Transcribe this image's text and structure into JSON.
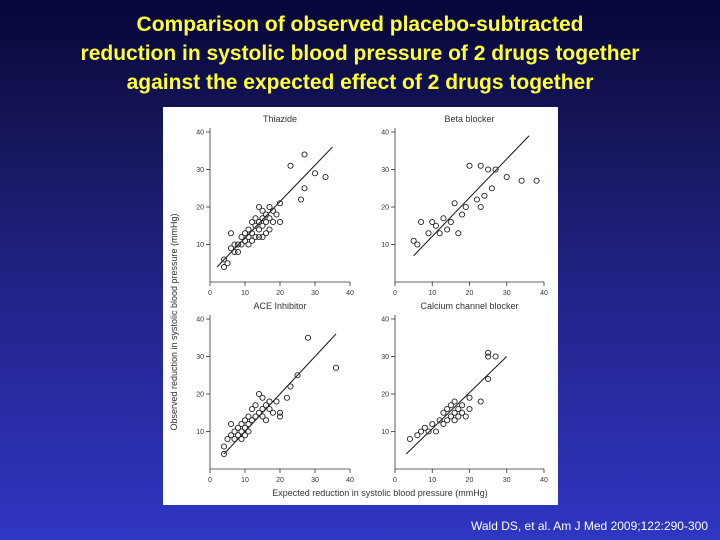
{
  "slide": {
    "title_lines": [
      "Comparison of observed placebo-subtracted",
      "reduction in systolic blood pressure of 2 drugs together",
      "against the expected effect of 2 drugs together"
    ],
    "citation": "Wald DS, et al. Am J Med 2009;122:290-300"
  },
  "figure": {
    "shared_ylabel": "Observed reduction in systolic blood pressure (mmHg)",
    "shared_xlabel": "Expected reduction in systolic blood pressure (mmHg)"
  },
  "colors": {
    "title": "#ffff33",
    "citation": "#ffffff",
    "ink": "#333333"
  },
  "chart_data": [
    {
      "type": "scatter",
      "title": "Thiazide",
      "xlim": [
        0,
        40
      ],
      "ylim": [
        0,
        40
      ],
      "xticks": [
        0,
        10,
        20,
        30,
        40
      ],
      "yticks": [
        10,
        20,
        30,
        40
      ],
      "line": [
        [
          2,
          4
        ],
        [
          35,
          36
        ]
      ],
      "points": [
        [
          4,
          4
        ],
        [
          4,
          6
        ],
        [
          5,
          5
        ],
        [
          6,
          9
        ],
        [
          6,
          13
        ],
        [
          7,
          8
        ],
        [
          7,
          10
        ],
        [
          8,
          8
        ],
        [
          8,
          10
        ],
        [
          9,
          10
        ],
        [
          9,
          12
        ],
        [
          10,
          11
        ],
        [
          10,
          13
        ],
        [
          11,
          10
        ],
        [
          11,
          12
        ],
        [
          11,
          14
        ],
        [
          12,
          11
        ],
        [
          12,
          13
        ],
        [
          12,
          16
        ],
        [
          13,
          12
        ],
        [
          13,
          15
        ],
        [
          13,
          17
        ],
        [
          14,
          12
        ],
        [
          14,
          14
        ],
        [
          14,
          16
        ],
        [
          14,
          20
        ],
        [
          15,
          12
        ],
        [
          15,
          15
        ],
        [
          15,
          17
        ],
        [
          15,
          19
        ],
        [
          16,
          13
        ],
        [
          16,
          16
        ],
        [
          16,
          18
        ],
        [
          17,
          14
        ],
        [
          17,
          17
        ],
        [
          17,
          20
        ],
        [
          18,
          16
        ],
        [
          18,
          19
        ],
        [
          19,
          18
        ],
        [
          20,
          16
        ],
        [
          20,
          21
        ],
        [
          23,
          31
        ],
        [
          26,
          22
        ],
        [
          27,
          25
        ],
        [
          27,
          34
        ],
        [
          30,
          29
        ],
        [
          33,
          28
        ]
      ]
    },
    {
      "type": "scatter",
      "title": "Beta blocker",
      "xlim": [
        0,
        40
      ],
      "ylim": [
        0,
        40
      ],
      "xticks": [
        0,
        10,
        20,
        30,
        40
      ],
      "yticks": [
        10,
        20,
        30,
        40
      ],
      "line": [
        [
          5,
          7
        ],
        [
          36,
          39
        ]
      ],
      "points": [
        [
          5,
          11
        ],
        [
          6,
          10
        ],
        [
          7,
          16
        ],
        [
          9,
          13
        ],
        [
          10,
          16
        ],
        [
          11,
          15
        ],
        [
          12,
          13
        ],
        [
          13,
          17
        ],
        [
          14,
          14
        ],
        [
          15,
          16
        ],
        [
          16,
          21
        ],
        [
          17,
          13
        ],
        [
          18,
          18
        ],
        [
          19,
          20
        ],
        [
          20,
          31
        ],
        [
          22,
          22
        ],
        [
          23,
          31
        ],
        [
          23,
          20
        ],
        [
          24,
          23
        ],
        [
          25,
          30
        ],
        [
          26,
          25
        ],
        [
          27,
          30
        ],
        [
          30,
          28
        ],
        [
          34,
          27
        ],
        [
          38,
          27
        ]
      ]
    },
    {
      "type": "scatter",
      "title": "ACE Inhibitor",
      "xlim": [
        0,
        40
      ],
      "ylim": [
        0,
        40
      ],
      "xticks": [
        0,
        10,
        20,
        30,
        40
      ],
      "yticks": [
        10,
        20,
        30,
        40
      ],
      "line": [
        [
          4,
          4
        ],
        [
          36,
          36
        ]
      ],
      "points": [
        [
          4,
          4
        ],
        [
          4,
          6
        ],
        [
          5,
          8
        ],
        [
          6,
          9
        ],
        [
          6,
          12
        ],
        [
          7,
          10
        ],
        [
          7,
          8
        ],
        [
          8,
          9
        ],
        [
          8,
          11
        ],
        [
          9,
          8
        ],
        [
          9,
          10
        ],
        [
          9,
          12
        ],
        [
          10,
          11
        ],
        [
          10,
          13
        ],
        [
          10,
          9
        ],
        [
          11,
          10
        ],
        [
          11,
          12
        ],
        [
          11,
          14
        ],
        [
          12,
          13
        ],
        [
          12,
          16
        ],
        [
          13,
          14
        ],
        [
          13,
          17
        ],
        [
          14,
          15
        ],
        [
          14,
          20
        ],
        [
          15,
          14
        ],
        [
          15,
          16
        ],
        [
          15,
          19
        ],
        [
          16,
          13
        ],
        [
          16,
          17
        ],
        [
          17,
          16
        ],
        [
          17,
          18
        ],
        [
          18,
          15
        ],
        [
          19,
          18
        ],
        [
          20,
          14
        ],
        [
          20,
          15
        ],
        [
          22,
          19
        ],
        [
          23,
          22
        ],
        [
          25,
          25
        ],
        [
          28,
          35
        ],
        [
          36,
          27
        ]
      ]
    },
    {
      "type": "scatter",
      "title": "Calcium channel blocker",
      "xlim": [
        0,
        40
      ],
      "ylim": [
        0,
        40
      ],
      "xticks": [
        0,
        10,
        20,
        30,
        40
      ],
      "yticks": [
        10,
        20,
        30,
        40
      ],
      "line": [
        [
          3,
          4
        ],
        [
          30,
          30
        ]
      ],
      "points": [
        [
          4,
          8
        ],
        [
          6,
          9
        ],
        [
          7,
          10
        ],
        [
          8,
          11
        ],
        [
          9,
          10
        ],
        [
          10,
          12
        ],
        [
          11,
          10
        ],
        [
          12,
          13
        ],
        [
          13,
          12
        ],
        [
          13,
          15
        ],
        [
          14,
          13
        ],
        [
          14,
          16
        ],
        [
          15,
          14
        ],
        [
          15,
          17
        ],
        [
          16,
          13
        ],
        [
          16,
          15
        ],
        [
          16,
          18
        ],
        [
          17,
          14
        ],
        [
          17,
          16
        ],
        [
          18,
          15
        ],
        [
          18,
          17
        ],
        [
          19,
          14
        ],
        [
          20,
          16
        ],
        [
          20,
          19
        ],
        [
          23,
          18
        ],
        [
          25,
          24
        ],
        [
          25,
          30
        ],
        [
          25,
          31
        ],
        [
          27,
          30
        ]
      ]
    }
  ]
}
